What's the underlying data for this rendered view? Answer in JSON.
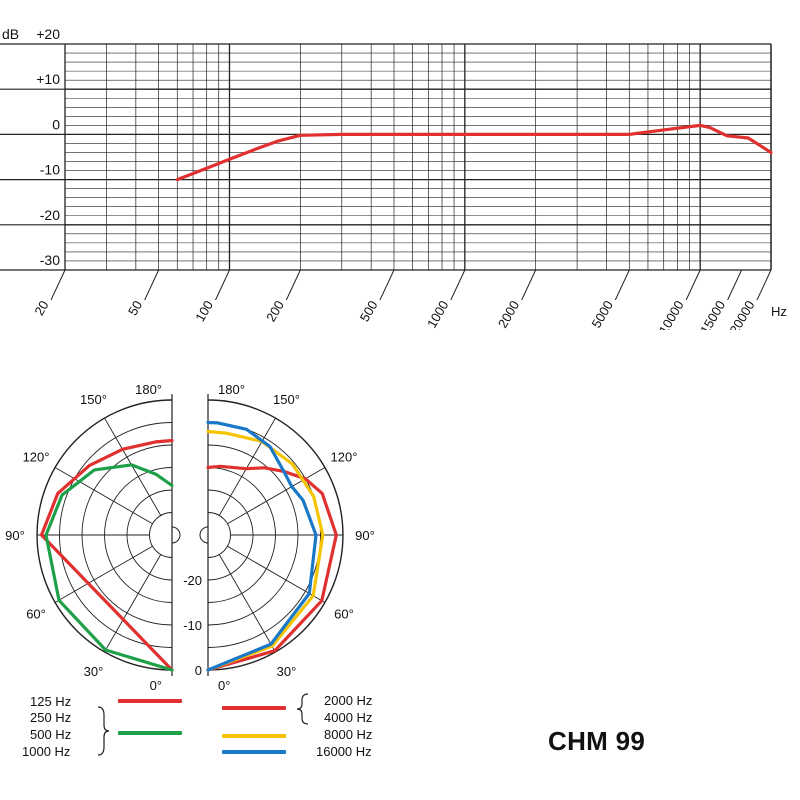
{
  "model": "CHM 99",
  "colors": {
    "red": "#e03030",
    "green": "#1ea048",
    "yellow": "#f5c300",
    "blue": "#1a78c8",
    "grid": "#222222"
  },
  "chart_data": [
    {
      "type": "line",
      "xscale": "log",
      "xlim": [
        20,
        20000
      ],
      "ylim": [
        -30,
        20
      ],
      "ylabel": "dB",
      "xlabel": "Hz",
      "x_ticks": [
        "20",
        "50",
        "100",
        "200",
        "500",
        "1000",
        "2000",
        "5000",
        "10000",
        "15000",
        "20000"
      ],
      "y_ticks": [
        "+20",
        "+10",
        "0",
        "-10",
        "-20",
        "-30"
      ],
      "series": [
        {
          "color": "#e03030",
          "x": [
            60,
            80,
            100,
            130,
            160,
            200,
            300,
            500,
            1000,
            2000,
            5000,
            7000,
            10000,
            11000,
            13000,
            16000,
            20000
          ],
          "y": [
            -10,
            -7.5,
            -5.5,
            -3.2,
            -1.5,
            -0.2,
            0,
            0,
            0,
            0,
            0,
            1,
            2,
            1.5,
            -0.3,
            -0.8,
            -4
          ]
        }
      ]
    },
    {
      "type": "polar",
      "rlabels": [
        "-20",
        "-10",
        "0"
      ],
      "angle_labels": [
        "180°",
        "150°",
        "120°",
        "90°",
        "60°",
        "30°",
        "0°"
      ],
      "series": [
        {
          "color": "#e03030",
          "side": "left",
          "angles": [
            0,
            90,
            110,
            130,
            150,
            170,
            180
          ],
          "levels": [
            0,
            -1,
            -3,
            -6,
            -8,
            -9,
            -9
          ]
        },
        {
          "color": "#1ea048",
          "side": "left",
          "angles": [
            0,
            30,
            60,
            90,
            110,
            130,
            150,
            165,
            180
          ],
          "levels": [
            0,
            -0.5,
            -1,
            -2,
            -4,
            -7.5,
            -12,
            -16,
            -19
          ]
        },
        {
          "color": "#e03030",
          "side": "right",
          "angles": [
            0,
            30,
            60,
            90,
            110,
            120,
            130,
            140,
            150,
            170,
            180
          ],
          "levels": [
            0,
            -0.3,
            -0.8,
            -1.5,
            -3,
            -5,
            -8,
            -10.5,
            -13,
            -14.5,
            -15
          ]
        },
        {
          "color": "#f5c300",
          "side": "right",
          "angles": [
            0,
            30,
            60,
            90,
            110,
            130,
            150,
            170,
            180
          ],
          "levels": [
            0,
            -1.5,
            -3,
            -4.5,
            -5,
            -5.5,
            -6,
            -7,
            -7
          ]
        },
        {
          "color": "#1a78c8",
          "side": "right",
          "angles": [
            0,
            30,
            60,
            90,
            110,
            120,
            130,
            145,
            160,
            175,
            180
          ],
          "levels": [
            0,
            -2,
            -4,
            -6,
            -7.5,
            -8.5,
            -8,
            -6,
            -5,
            -5,
            -5
          ]
        }
      ]
    }
  ],
  "legend": {
    "left": [
      {
        "label": "125 Hz",
        "group": 0
      },
      {
        "label": "250 Hz",
        "group": 1
      },
      {
        "label": "500 Hz",
        "group": 1
      },
      {
        "label": "1000 Hz",
        "group": 1
      }
    ],
    "right": [
      {
        "label": "2000 Hz",
        "group": 0
      },
      {
        "label": "4000 Hz",
        "group": 0
      },
      {
        "label": "8000 Hz",
        "group": 1
      },
      {
        "label": "16000 Hz",
        "group": 2
      }
    ]
  }
}
